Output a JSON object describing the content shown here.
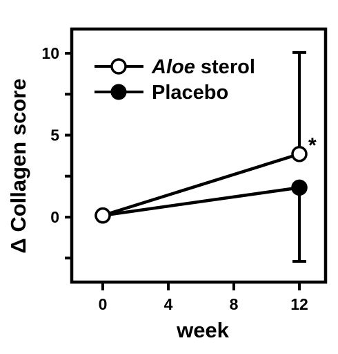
{
  "chart_data": {
    "type": "line",
    "xlabel": "week",
    "ylabel": "Δ Collagen score",
    "x_ticks": [
      "0",
      "4",
      "8",
      "12"
    ],
    "y_ticks": [
      "0",
      "5",
      "10"
    ],
    "xlim": [
      -3,
      15
    ],
    "ylim": [
      -4,
      12
    ],
    "legend": "top-left",
    "series": [
      {
        "name_italic": "Aloe",
        "name_rest": " sterol",
        "marker": "open-circle",
        "color": "#000000",
        "x": [
          0,
          12
        ],
        "y": [
          0.1,
          3.85
        ],
        "error_upper": [
          null,
          10.05
        ],
        "error_lower": [
          null,
          null
        ]
      },
      {
        "name": "Placebo",
        "marker": "filled-circle",
        "color": "#000000",
        "x": [
          0,
          12
        ],
        "y": [
          0.1,
          1.8
        ],
        "error_upper": [
          null,
          null
        ],
        "error_lower": [
          null,
          -2.7
        ]
      }
    ],
    "annotations": [
      {
        "text": "*",
        "x": 12,
        "y": 3.85
      }
    ]
  }
}
